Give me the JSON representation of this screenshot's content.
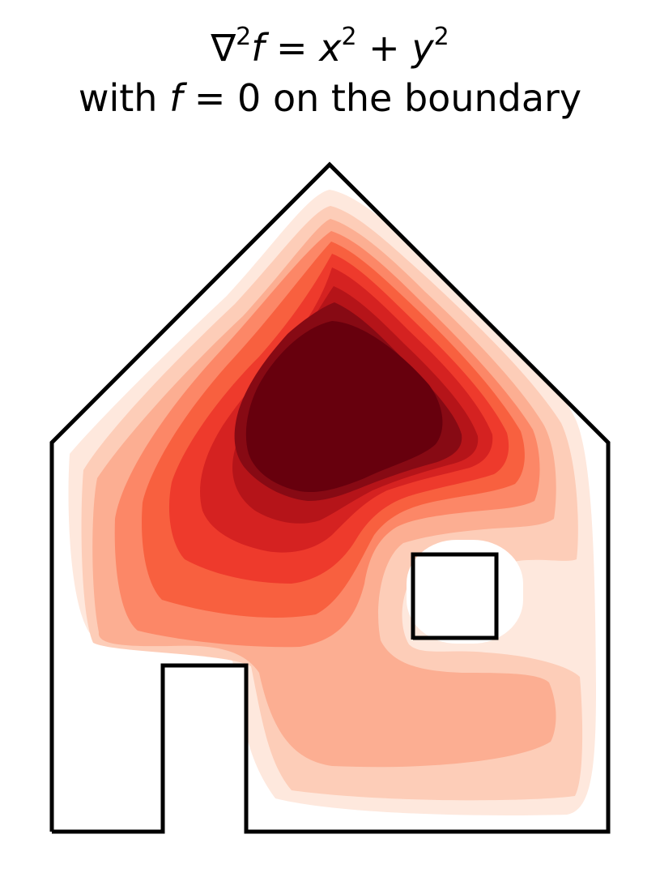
{
  "title": {
    "nabla": "∇",
    "exp2": "2",
    "f": "f",
    "eq": " = ",
    "x": "x",
    "plus": " + ",
    "y": "y",
    "with": "with ",
    "eq0": " = 0 on the boundary"
  },
  "chart_data": {
    "type": "contourf",
    "title": "∇²f = x² + y² with f = 0 on the boundary",
    "colormap": "Reds",
    "levels": [
      0,
      0.1,
      0.2,
      0.3,
      0.4,
      0.5,
      0.6,
      0.7,
      0.8,
      0.9
    ],
    "colors": [
      "#fee8dd",
      "#fdcdb8",
      "#fcae92",
      "#fc8767",
      "#f8603f",
      "#ee3a2c",
      "#d52221",
      "#b51419",
      "#870a14",
      "#67000d"
    ],
    "boundary": "house outline with door and window",
    "boundary_color": "#000000",
    "axes": "off"
  }
}
